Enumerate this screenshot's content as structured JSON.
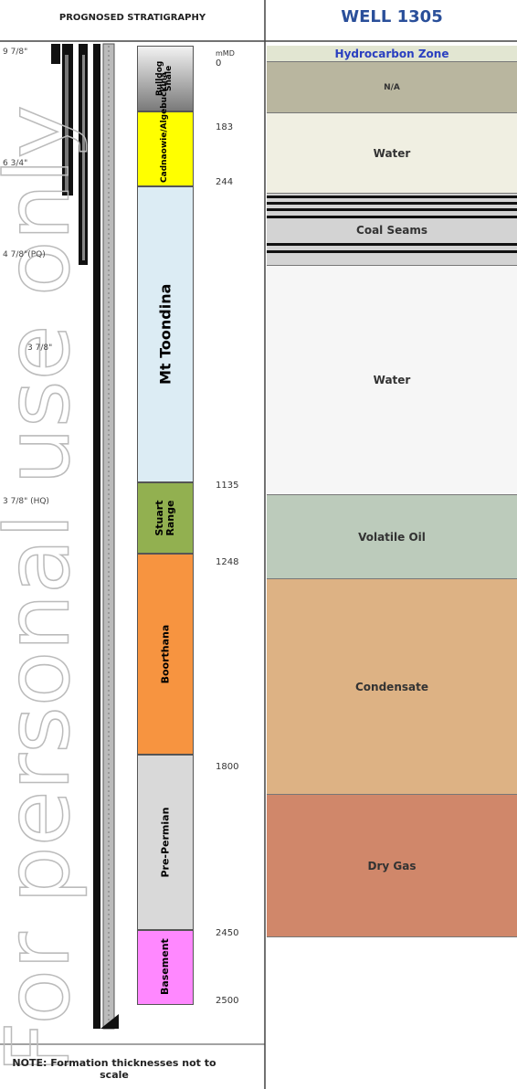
{
  "header": {
    "left_title": "PROGNOSED STRATIGRAPHY",
    "right_title": "WELL 1305"
  },
  "casing_labels": [
    "9 7/8\"",
    "6 3/4\"",
    "4 7/8\"(PQ)",
    "3 7/8\"",
    "3 7/8\" (HQ)"
  ],
  "depth_header": "mMD",
  "depths": [
    "0",
    "183",
    "244",
    "1135",
    "1248",
    "1800",
    "2450",
    "2500"
  ],
  "formations": [
    "Bulldog Shale",
    "Cadnaowie/Algebuckina",
    "Mt Toondina",
    "Stuart Range",
    "Boorthana",
    "Pre-Permian",
    "Basement"
  ],
  "zones": [
    "Hydrocarbon Zone",
    "N/A",
    "Water",
    "Coal Seams",
    "Water",
    "Volatile Oil",
    "Condensate",
    "Dry Gas"
  ],
  "note": "NOTE: Formation thicknesses not to scale",
  "watermark": "For personal use only"
}
